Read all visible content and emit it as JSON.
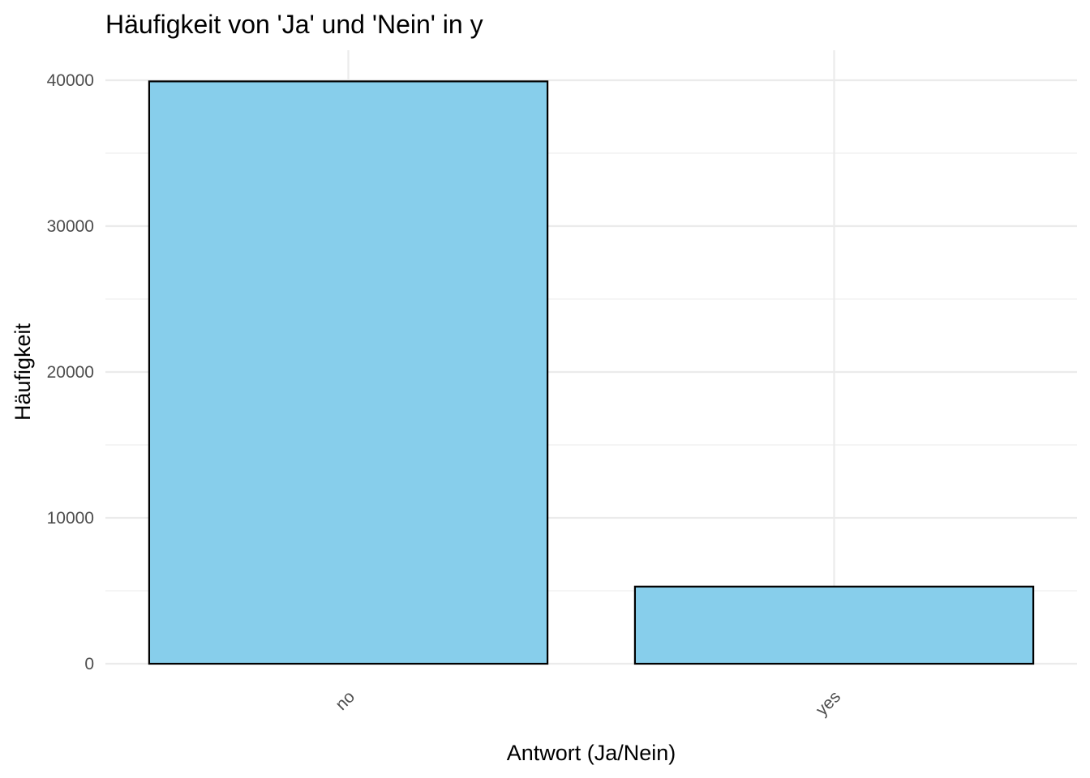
{
  "chart_data": {
    "type": "bar",
    "title": "Häufigkeit von 'Ja' und 'Nein' in y",
    "xlabel": "Antwort (Ja/Nein)",
    "ylabel": "Häufigkeit",
    "categories": [
      "no",
      "yes"
    ],
    "values": [
      39922,
      5289
    ],
    "ylim": [
      0,
      40000
    ],
    "yticks": [
      0,
      10000,
      20000,
      30000,
      40000
    ],
    "ytick_labels": [
      "0",
      "10000",
      "20000",
      "30000",
      "40000"
    ],
    "grid": true,
    "x_tick_rotation_deg": 45,
    "colors": {
      "bar_fill": "#87CEEB",
      "bar_outline": "#000000",
      "grid": "#ebebeb",
      "tick_text": "#4d4d4d"
    }
  }
}
